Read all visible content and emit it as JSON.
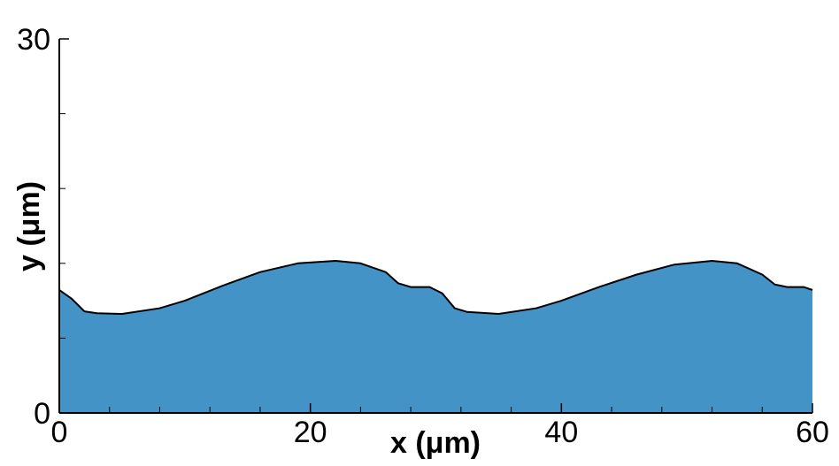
{
  "chart_data": {
    "type": "area",
    "x_label": "x (μm)",
    "y_label": "y (μm)",
    "x": [
      0,
      1,
      2,
      3,
      5,
      8,
      10,
      13,
      16,
      19,
      22,
      24,
      26,
      27,
      28,
      29.5,
      30.5,
      31.5,
      32.5,
      35,
      38,
      40,
      43,
      46,
      49,
      52,
      54,
      56,
      57,
      58,
      59.3,
      60
    ],
    "values": [
      9.86,
      9.15,
      8.15,
      8.0,
      7.94,
      8.4,
      9.0,
      10.2,
      11.3,
      12.0,
      12.2,
      12.0,
      11.3,
      10.4,
      10.1,
      10.1,
      9.6,
      8.4,
      8.1,
      7.94,
      8.4,
      9.0,
      10.1,
      11.1,
      11.9,
      12.2,
      12.0,
      11.1,
      10.3,
      10.1,
      10.1,
      9.86
    ],
    "color": "#4393c6",
    "xlim": [
      0,
      60
    ],
    "ylim": [
      0,
      30
    ],
    "xticks": [
      0,
      20,
      40,
      60
    ],
    "yticks": [
      0,
      30
    ],
    "xminor_ticks": [
      4,
      8,
      12,
      16,
      24,
      28,
      32,
      36,
      44,
      48,
      52,
      56
    ],
    "yminor_ticks": [
      6,
      12,
      18,
      24
    ]
  }
}
